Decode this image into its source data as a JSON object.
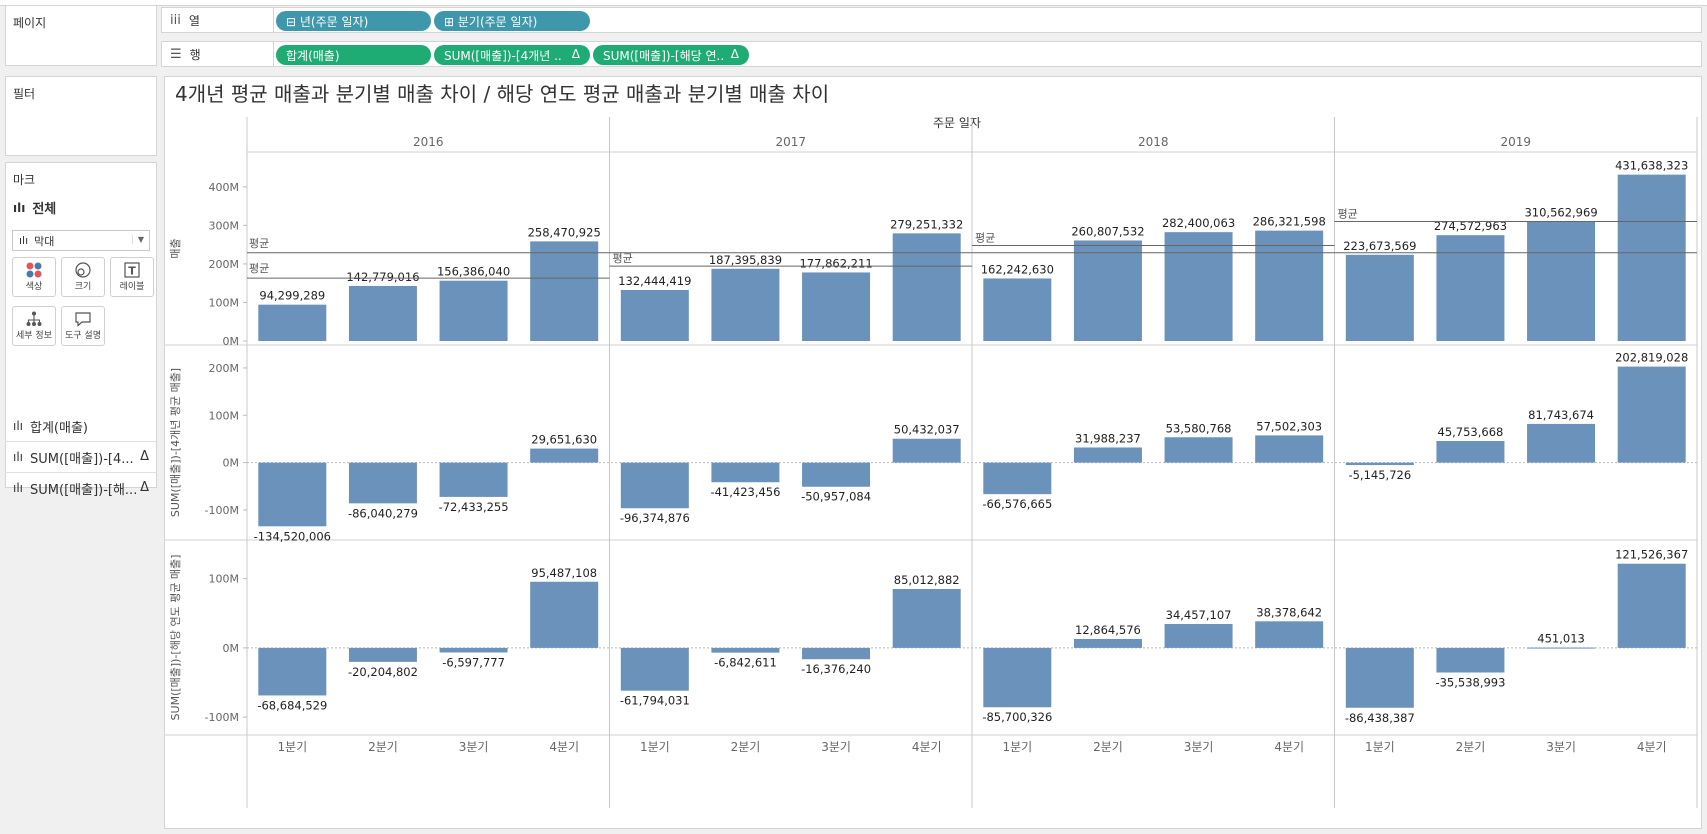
{
  "sidebar": {
    "pages_title": "페이지",
    "filters_title": "필터",
    "marks_title": "마크",
    "marks_all": "전체",
    "mark_type": "막대",
    "buttons": [
      {
        "label": "색상",
        "icon": "color-dots-icon"
      },
      {
        "label": "크기",
        "icon": "size-icon"
      },
      {
        "label": "레이블",
        "icon": "label-icon"
      },
      {
        "label": "세부 정보",
        "icon": "detail-icon"
      },
      {
        "label": "도구 설명",
        "icon": "tooltip-icon"
      }
    ],
    "measures": [
      {
        "label": "합계(매출)",
        "delta": ""
      },
      {
        "label": "SUM([매출])-[4...",
        "delta": "Δ"
      },
      {
        "label": "SUM([매출])-[해...",
        "delta": "Δ"
      }
    ]
  },
  "shelves": {
    "columns": {
      "label": "열",
      "pills": [
        {
          "text": "⊟ 년(주문 일자)",
          "delta": ""
        },
        {
          "text": "⊞ 분기(주문 일자)",
          "delta": ""
        }
      ]
    },
    "rows": {
      "label": "행",
      "pills": [
        {
          "text": "합계(매출)",
          "delta": ""
        },
        {
          "text": "SUM([매출])-[4개년 ..",
          "delta": "Δ"
        },
        {
          "text": "SUM([매출])-[해당 연..",
          "delta": "Δ"
        }
      ]
    }
  },
  "colors": {
    "bar": "#6b92ba",
    "pill_blue": "#3f97ab",
    "pill_green": "#1fab74"
  },
  "chart_data": {
    "type": "bar",
    "title": "4개년 평균 매출과 분기별 매출 차이 / 해당 연도 평균 매출과 분기별 매출 차이",
    "header_label": "주문 일자",
    "years": [
      "2016",
      "2017",
      "2018",
      "2019"
    ],
    "quarters": [
      "1분기",
      "2분기",
      "3분기",
      "4분기"
    ],
    "average_label": "평균",
    "panels": [
      {
        "name": "매출",
        "ylabel": "매출",
        "ylim": [
          0,
          480000000
        ],
        "ticks": [
          {
            "value": 0,
            "label": "0M"
          },
          {
            "value": 100000000,
            "label": "100M"
          },
          {
            "value": 200000000,
            "label": "200M"
          },
          {
            "value": 300000000,
            "label": "300M"
          },
          {
            "value": 400000000,
            "label": "400M"
          }
        ],
        "values": [
          [
            94299289,
            142779016,
            156386040,
            258470925
          ],
          [
            132444419,
            187395839,
            177862211,
            279251332
          ],
          [
            162242630,
            260807532,
            282400063,
            286321598
          ],
          [
            223673569,
            274572963,
            310562969,
            431638323
          ]
        ],
        "labels": [
          [
            "94,299,289",
            "142,779,016",
            "156,386,040",
            "258,470,925"
          ],
          [
            "132,444,419",
            "187,395,839",
            "177,862,211",
            "279,251,332"
          ],
          [
            "162,242,630",
            "260,807,532",
            "282,400,063",
            "286,321,598"
          ],
          [
            "223,673,569",
            "274,572,963",
            "310,562,969",
            "431,638,323"
          ]
        ],
        "overall_average": 228819120,
        "yearly_averages": [
          162983818,
          194238450,
          247942956,
          310111956
        ]
      },
      {
        "name": "SUM([매출])-[4개년 평균 매출]",
        "ylabel": "SUM([매출])-[4개년 평균 매출]",
        "ylim": [
          -155000000,
          240000000
        ],
        "ticks": [
          {
            "value": -100000000,
            "label": "-100M"
          },
          {
            "value": 0,
            "label": "0M"
          },
          {
            "value": 100000000,
            "label": "100M"
          },
          {
            "value": 200000000,
            "label": "200M"
          }
        ],
        "values": [
          [
            -134520006,
            -86040279,
            -72433255,
            29651630
          ],
          [
            -96374876,
            -41423456,
            -50957084,
            50432037
          ],
          [
            -66576665,
            31988237,
            53580768,
            57502303
          ],
          [
            -5145726,
            45753668,
            81743674,
            202819028
          ]
        ],
        "labels": [
          [
            "-134,520,006",
            "-86,040,279",
            "-72,433,255",
            "29,651,630"
          ],
          [
            "-96,374,876",
            "-41,423,456",
            "-50,957,084",
            "50,432,037"
          ],
          [
            "-66,576,665",
            "31,988,237",
            "53,580,768",
            "57,502,303"
          ],
          [
            "-5,145,726",
            "45,753,668",
            "81,743,674",
            "202,819,028"
          ]
        ]
      },
      {
        "name": "SUM([매출])-[해당 연도 평균 매출]",
        "ylabel": "SUM([매출])-[해당 연도 평균 매출]",
        "ylim": [
          -120000000,
          150000000
        ],
        "ticks": [
          {
            "value": -100000000,
            "label": "-100M"
          },
          {
            "value": 0,
            "label": "0M"
          },
          {
            "value": 100000000,
            "label": "100M"
          }
        ],
        "values": [
          [
            -68684529,
            -20204802,
            -6597777,
            95487108
          ],
          [
            -61794031,
            -6842611,
            -16376240,
            85012882
          ],
          [
            -85700326,
            12864576,
            34457107,
            38378642
          ],
          [
            -86438387,
            -35538993,
            451013,
            121526367
          ]
        ],
        "labels": [
          [
            "-68,684,529",
            "-20,204,802",
            "-6,597,777",
            "95,487,108"
          ],
          [
            "-61,794,031",
            "-6,842,611",
            "-16,376,240",
            "85,012,882"
          ],
          [
            "-85,700,326",
            "12,864,576",
            "34,457,107",
            "38,378,642"
          ],
          [
            "-86,438,387",
            "-35,538,993",
            "451,013",
            "121,526,367"
          ]
        ]
      }
    ]
  }
}
